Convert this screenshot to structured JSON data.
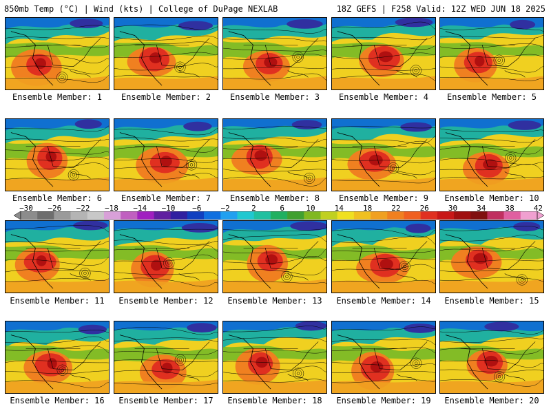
{
  "header": {
    "left": "850mb Temp (°C) | Wind (kts) | College of DuPage NEXLAB",
    "right": "18Z GEFS | F258 Valid: 12Z WED JUN 18 2025"
  },
  "members": [
    "Ensemble Member: 1",
    "Ensemble Member: 2",
    "Ensemble Member: 3",
    "Ensemble Member: 4",
    "Ensemble Member: 5",
    "Ensemble Member: 6",
    "Ensemble Member: 7",
    "Ensemble Member: 8",
    "Ensemble Member: 9",
    "Ensemble Member: 10",
    "Ensemble Member: 11",
    "Ensemble Member: 12",
    "Ensemble Member: 13",
    "Ensemble Member: 14",
    "Ensemble Member: 15",
    "Ensemble Member: 16",
    "Ensemble Member: 17",
    "Ensemble Member: 18",
    "Ensemble Member: 19",
    "Ensemble Member: 20"
  ],
  "colorbar": {
    "labels": [
      "−30",
      "−26",
      "−22",
      "−18",
      "−14",
      "−10",
      "−6",
      "−2",
      "2",
      "6",
      "10",
      "14",
      "18",
      "22",
      "26",
      "30",
      "34",
      "38",
      "42"
    ],
    "colors": [
      "#8c8c8c",
      "#6e6e6e",
      "#9a9a9a",
      "#b4b4b4",
      "#c8c8c8",
      "#d8a0d8",
      "#c060c0",
      "#a020c0",
      "#6020a0",
      "#3020a0",
      "#1040c0",
      "#1070e0",
      "#20a0f0",
      "#20c8d0",
      "#20c0a0",
      "#20b060",
      "#40a030",
      "#80b820",
      "#c0d020",
      "#f0e020",
      "#f0c020",
      "#f0a020",
      "#f08020",
      "#f06020",
      "#e03020",
      "#c81818",
      "#a01010",
      "#801010",
      "#c03060",
      "#e060a0",
      "#f0a0d0"
    ]
  }
}
